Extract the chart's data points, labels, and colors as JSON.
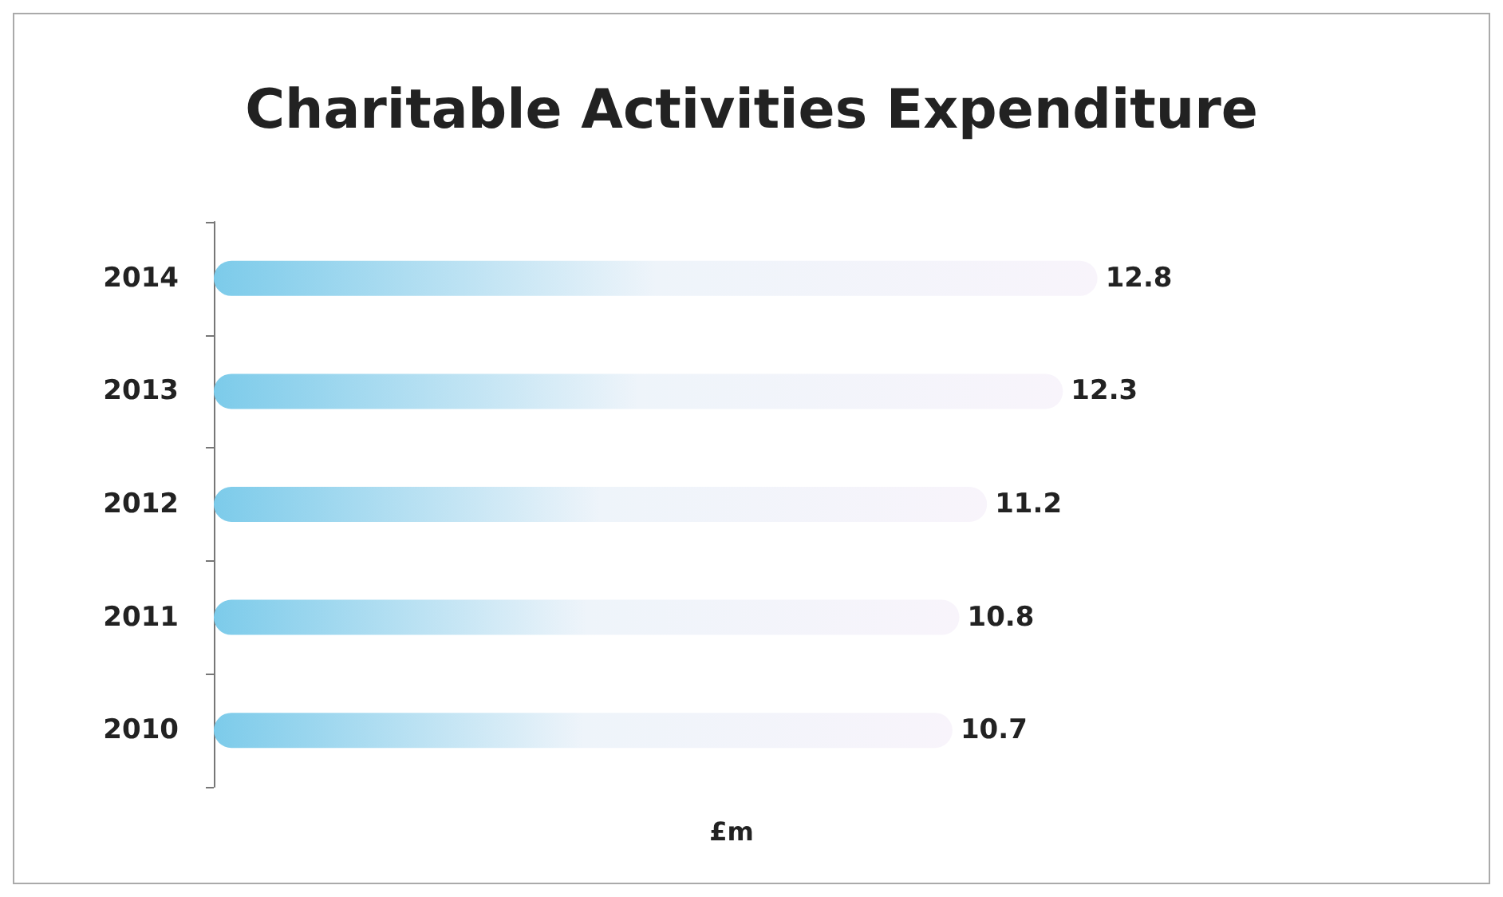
{
  "chart_data": {
    "type": "bar",
    "orientation": "horizontal",
    "title": "Charitable Activities Expenditure",
    "xlabel": "£m",
    "categories": [
      "2014",
      "2013",
      "2012",
      "2011",
      "2010"
    ],
    "values": [
      12.8,
      12.3,
      11.2,
      10.8,
      10.7
    ],
    "color": "#7ccbea",
    "data_labels": true,
    "grid": false,
    "tick_labels": "y"
  }
}
